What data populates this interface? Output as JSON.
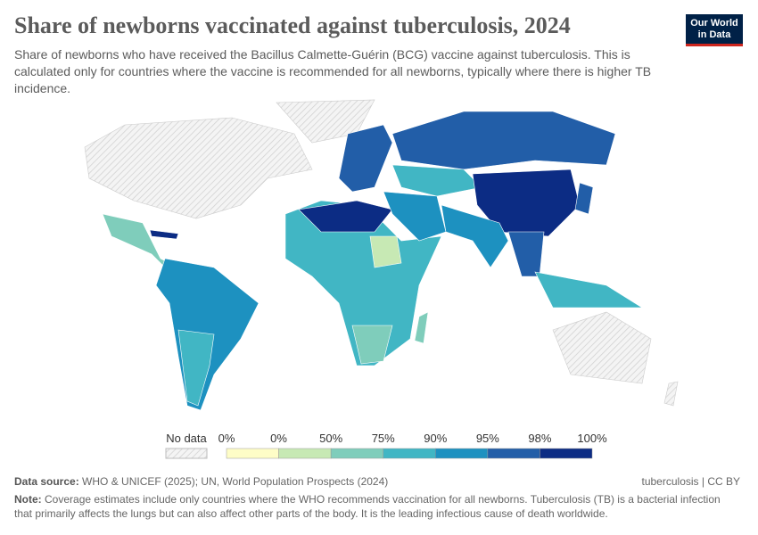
{
  "header": {
    "title": "Share of newborns vaccinated against tuberculosis, 2024",
    "subtitle": "Share of newborns who have received the Bacillus Calmette-Guérin (BCG) vaccine against tuberculosis. This is calculated only for countries where the vaccine is recommended for all newborns, typically where there is higher TB incidence.",
    "logo": [
      "Our World",
      "in Data"
    ]
  },
  "colors": {
    "no_data": "#e8e8e8",
    "bins": [
      "#fefdc7",
      "#c7e9b4",
      "#7fcdbb",
      "#41b6c4",
      "#1d91c0",
      "#225ea8",
      "#0c2c84"
    ]
  },
  "legend": {
    "no_data_label": "No data",
    "ticks": [
      "0%",
      "0%",
      "50%",
      "75%",
      "90%",
      "95%",
      "98%",
      "100%"
    ]
  },
  "footer": {
    "source_label": "Data source:",
    "source": "WHO & UNICEF (2025); UN, World Population Prospects (2024)",
    "license": "tuberculosis | CC BY",
    "note_label": "Note:",
    "note": "Coverage estimates include only countries where the WHO recommends vaccination for all newborns. Tuberculosis (TB) is a bacterial infection that primarily affects the lungs but can also affect other parts of the body. It is the leading infectious cause of death worldwide."
  }
}
